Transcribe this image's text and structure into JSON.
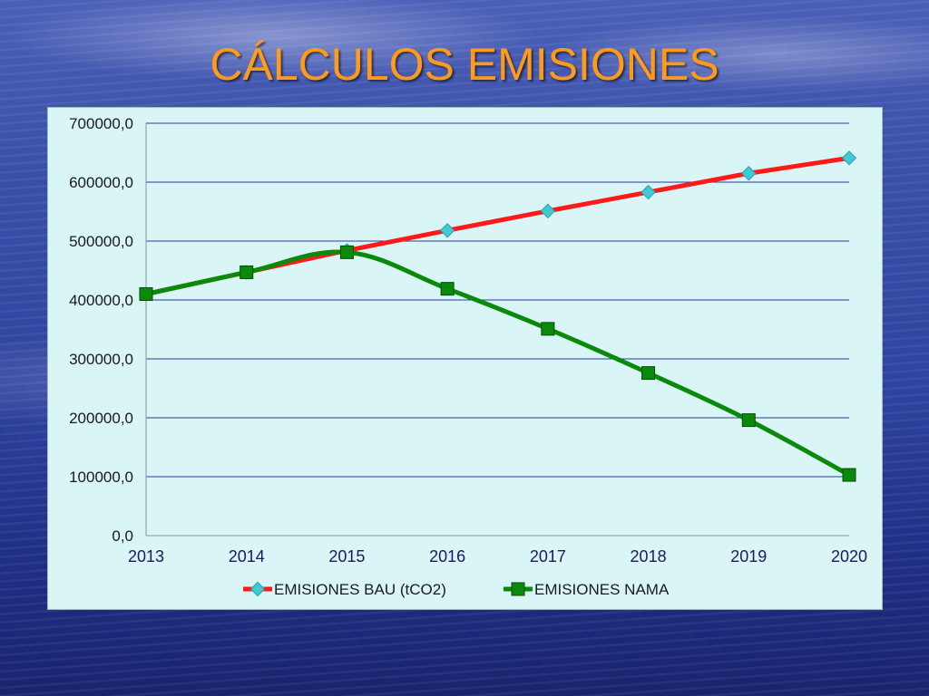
{
  "slide": {
    "title": "CÁLCULOS EMISIONES"
  },
  "colors": {
    "title": "#ff9a1a",
    "bau_line": "#ff1a1a",
    "bau_marker": "#3ec9d4",
    "nama_line": "#0a8a0a",
    "nama_marker": "#0a8a0a",
    "chart_bg": "#d9f5f5",
    "gridline": "#2a3a9a"
  },
  "chart_data": {
    "type": "line",
    "categories": [
      "2013",
      "2014",
      "2015",
      "2016",
      "2017",
      "2018",
      "2019",
      "2020"
    ],
    "series": [
      {
        "name": "EMISIONES BAU (tCO2)",
        "marker": "diamond",
        "values": [
          410000,
          447000,
          484000,
          518000,
          551000,
          583000,
          615000,
          641000
        ]
      },
      {
        "name": "EMISIONES NAMA",
        "marker": "square",
        "smooth": true,
        "values": [
          410000,
          447000,
          481000,
          419000,
          351000,
          276000,
          196000,
          103000
        ]
      }
    ],
    "ylim": [
      0,
      700000
    ],
    "yticks": [
      "0,0",
      "100000,0",
      "200000,0",
      "300000,0",
      "400000,0",
      "500000,0",
      "600000,0",
      "700000,0"
    ],
    "grid": true,
    "legend": "bottom",
    "xlabel": "",
    "ylabel": ""
  }
}
